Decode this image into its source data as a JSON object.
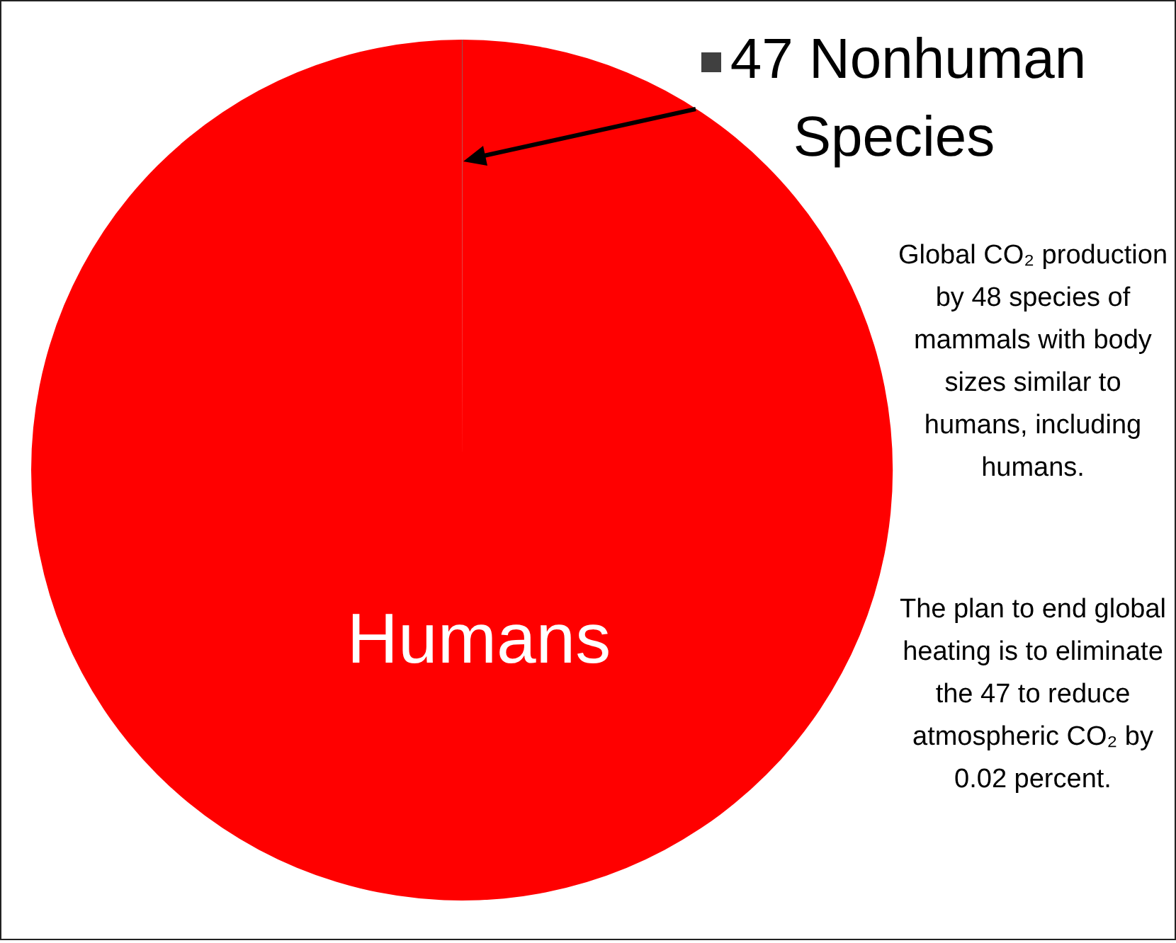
{
  "chart_data": {
    "type": "pie",
    "categories": [
      "47 Nonhuman Species",
      "Humans"
    ],
    "values": [
      0.02,
      99.98
    ],
    "colors": [
      "#404040",
      "#ff0000"
    ],
    "annotations": [
      "Global CO₂ production by 48 species of mammals with body sizes similar to humans, including humans.",
      "The plan to end global heating is to eliminate the 47 to reduce atmospheric CO₂ by 0.02 percent."
    ]
  }
}
